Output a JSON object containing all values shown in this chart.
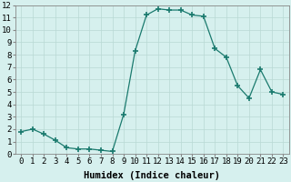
{
  "x": [
    0,
    1,
    2,
    3,
    4,
    5,
    6,
    7,
    8,
    9,
    10,
    11,
    12,
    13,
    14,
    15,
    16,
    17,
    18,
    19,
    20,
    21,
    22,
    23
  ],
  "y": [
    1.8,
    2.0,
    1.6,
    1.1,
    0.5,
    0.4,
    0.4,
    0.3,
    0.2,
    3.2,
    8.3,
    11.2,
    11.7,
    11.6,
    11.6,
    11.2,
    11.1,
    8.5,
    7.8,
    5.5,
    4.5,
    6.8,
    5.0,
    4.8
  ],
  "line_color": "#1a7a6e",
  "marker": "+",
  "marker_size": 4,
  "bg_color": "#d6f0ee",
  "grid_color": "#b8d8d4",
  "xlabel": "Humidex (Indice chaleur)",
  "xlim": [
    -0.5,
    23.5
  ],
  "ylim": [
    0,
    12
  ],
  "xtick_labels": [
    "0",
    "1",
    "2",
    "3",
    "4",
    "5",
    "6",
    "7",
    "8",
    "9",
    "10",
    "11",
    "12",
    "13",
    "14",
    "15",
    "16",
    "17",
    "18",
    "19",
    "20",
    "21",
    "22",
    "23"
  ],
  "ytick_labels": [
    "0",
    "1",
    "2",
    "3",
    "4",
    "5",
    "6",
    "7",
    "8",
    "9",
    "10",
    "11",
    "12"
  ],
  "xlabel_fontsize": 7.5,
  "tick_fontsize": 6.5
}
